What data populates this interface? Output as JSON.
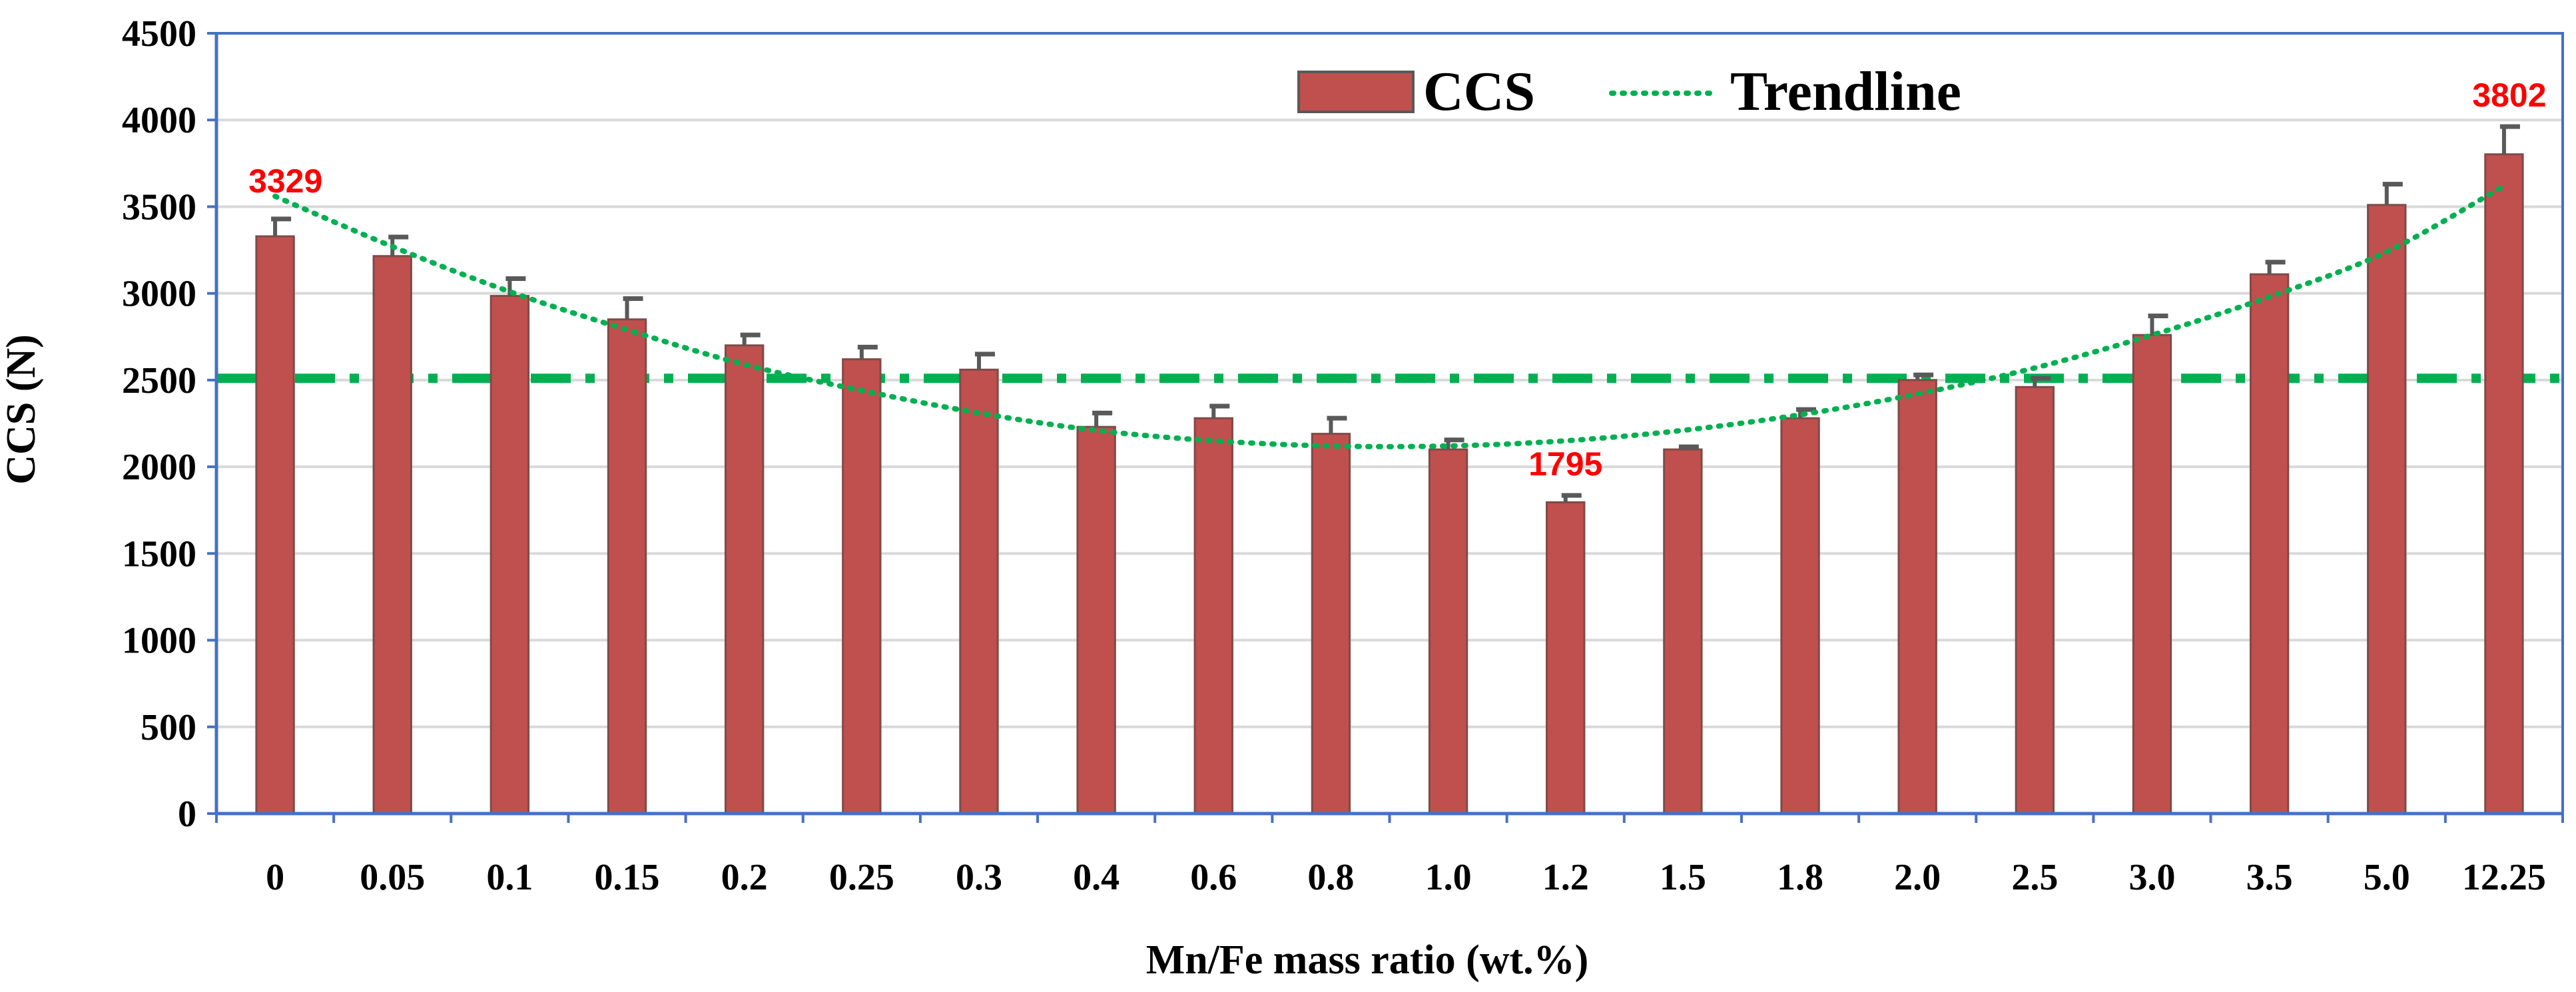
{
  "chart_data": {
    "type": "bar",
    "xlabel": "Mn/Fe mass ratio (wt.%)",
    "ylabel": "CCS (N)",
    "ylim": [
      0,
      4500
    ],
    "yticks": [
      0,
      500,
      1000,
      1500,
      2000,
      2500,
      3000,
      3500,
      4000,
      4500
    ],
    "grid": true,
    "legend_position": "top-center",
    "categories": [
      "0",
      "0.05",
      "0.1",
      "0.15",
      "0.2",
      "0.25",
      "0.3",
      "0.4",
      "0.6",
      "0.8",
      "1.0",
      "1.2",
      "1.5",
      "1.8",
      "2.0",
      "2.5",
      "3.0",
      "3.5",
      "5.0",
      "12.25"
    ],
    "series": [
      {
        "name": "CCS",
        "color": "#c0504d",
        "values": [
          3329,
          3215,
          2985,
          2850,
          2700,
          2620,
          2560,
          2230,
          2280,
          2190,
          2100,
          1795,
          2100,
          2280,
          2500,
          2460,
          2760,
          3110,
          3510,
          3802
        ],
        "errors": [
          100,
          110,
          100,
          120,
          60,
          70,
          90,
          80,
          70,
          90,
          55,
          40,
          15,
          50,
          30,
          50,
          110,
          70,
          120,
          160
        ]
      }
    ],
    "trendline": {
      "name": "Trendline",
      "color": "#00b050",
      "style": "dotted",
      "values": [
        3560,
        3270,
        3010,
        2790,
        2590,
        2440,
        2310,
        2210,
        2150,
        2120,
        2120,
        2150,
        2210,
        2300,
        2420,
        2570,
        2760,
        2980,
        3240,
        3620
      ]
    },
    "reference_line": {
      "value": 2510,
      "color": "#00b050",
      "style": "dash-dot"
    },
    "annotations": [
      {
        "label": "3329",
        "category_index": 0,
        "value": 3329
      },
      {
        "label": "1795",
        "category_index": 11,
        "value": 1795
      },
      {
        "label": "3802",
        "category_index": 19,
        "value": 3802
      }
    ]
  }
}
